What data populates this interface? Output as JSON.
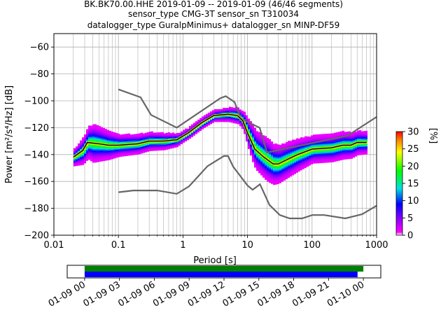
{
  "chart_data": [
    {
      "type": "heatmap",
      "title_lines": [
        "BK.BK70.00.HHE   2019-01-09 -- 2019-01-09  (46/46 segments)",
        "sensor_type CMG-3T sensor_sn T310034",
        "datalogger_type GuralpMinimus+ datalogger_sn MINP-DF59"
      ],
      "xlabel": "Period [s]",
      "ylabel": "Power [m²/s⁴/Hz] [dB]",
      "x_scale": "log",
      "xlim": [
        0.01,
        1000
      ],
      "ylim": [
        -200,
        -50
      ],
      "x_ticks": [
        0.01,
        0.1,
        1,
        10,
        100,
        1000
      ],
      "x_tick_labels": [
        "0.01",
        "0.1",
        "1",
        "10",
        "100",
        "1000"
      ],
      "y_ticks": [
        -200,
        -180,
        -160,
        -140,
        -120,
        -100,
        -80,
        -60
      ],
      "y_tick_labels": [
        "−200",
        "−180",
        "−160",
        "−140",
        "−120",
        "−100",
        "−80",
        "−60"
      ],
      "grid": true,
      "noise_models": [
        {
          "name": "new_high_noise_model",
          "color": "#666666",
          "points": [
            [
              0.1,
              -91.5
            ],
            [
              0.22,
              -97.4
            ],
            [
              0.32,
              -110.5
            ],
            [
              0.8,
              -120
            ],
            [
              3.8,
              -98
            ],
            [
              4.6,
              -96.5
            ],
            [
              6.3,
              -101
            ],
            [
              7.9,
              -113.5
            ],
            [
              15.4,
              -120
            ],
            [
              20,
              -138.5
            ],
            [
              354.8,
              -126
            ],
            [
              1000,
              -112
            ]
          ]
        },
        {
          "name": "new_low_noise_model",
          "color": "#666666",
          "points": [
            [
              0.1,
              -168
            ],
            [
              0.17,
              -166.7
            ],
            [
              0.4,
              -166.7
            ],
            [
              0.8,
              -169.2
            ],
            [
              1.24,
              -163.7
            ],
            [
              2.4,
              -148.6
            ],
            [
              4.3,
              -141.1
            ],
            [
              5,
              -141.1
            ],
            [
              6,
              -149
            ],
            [
              10,
              -163
            ],
            [
              12,
              -166.2
            ],
            [
              15.6,
              -162.1
            ],
            [
              21.9,
              -177.5
            ],
            [
              31.6,
              -185
            ],
            [
              45,
              -187.5
            ],
            [
              70,
              -187.5
            ],
            [
              101,
              -185
            ],
            [
              154,
              -185
            ],
            [
              328,
              -187.5
            ],
            [
              600,
              -184.4
            ],
            [
              1000,
              -178
            ]
          ]
        }
      ],
      "median_curve": [
        [
          0.02,
          -142
        ],
        [
          0.028,
          -137
        ],
        [
          0.033,
          -131
        ],
        [
          0.05,
          -132
        ],
        [
          0.07,
          -133
        ],
        [
          0.1,
          -133
        ],
        [
          0.2,
          -132
        ],
        [
          0.3,
          -130
        ],
        [
          0.5,
          -130
        ],
        [
          0.8,
          -129
        ],
        [
          1.2,
          -124
        ],
        [
          2,
          -116
        ],
        [
          3,
          -111
        ],
        [
          5,
          -110
        ],
        [
          7,
          -111
        ],
        [
          8.5,
          -115
        ],
        [
          10,
          -124
        ],
        [
          13,
          -136
        ],
        [
          18,
          -142
        ],
        [
          25,
          -147
        ],
        [
          30,
          -147
        ],
        [
          40,
          -144
        ],
        [
          60,
          -140
        ],
        [
          100,
          -136
        ],
        [
          200,
          -135
        ],
        [
          300,
          -133
        ],
        [
          400,
          -133
        ],
        [
          500,
          -131
        ],
        [
          700,
          -131
        ]
      ],
      "psd_band": {
        "width_db": [
          [
            0.02,
            6
          ],
          [
            0.04,
            14
          ],
          [
            0.1,
            8
          ],
          [
            0.5,
            6
          ],
          [
            1,
            4
          ],
          [
            3,
            4
          ],
          [
            8,
            6
          ],
          [
            12,
            14
          ],
          [
            20,
            16
          ],
          [
            30,
            14
          ],
          [
            60,
            12
          ],
          [
            100,
            10
          ],
          [
            300,
            10
          ],
          [
            700,
            8
          ]
        ]
      },
      "colorbar": {
        "label": "[%]",
        "range": [
          0,
          30
        ],
        "ticks": [
          0,
          5,
          10,
          15,
          20,
          25,
          30
        ],
        "tick_labels": [
          "0",
          "5",
          "10",
          "15",
          "20",
          "25",
          "30"
        ],
        "colormap": "pqlx"
      }
    },
    {
      "type": "bar",
      "description_key": "data_coverage",
      "x_range_labels": [
        "01-09 00",
        "01-10 00"
      ],
      "time_tick_labels": [
        "01-09 00",
        "01-09 03",
        "01-09 06",
        "01-09 09",
        "01-09 12",
        "01-09 15",
        "01-09 18",
        "01-09 21",
        "01-10 00"
      ],
      "xlim_hours": [
        -1.5,
        25.5
      ],
      "bars": [
        {
          "name": "data",
          "color": "#008000",
          "start_hour": 0,
          "end_hour": 24.0
        },
        {
          "name": "processed",
          "color": "#0000ff",
          "start_hour": 0,
          "end_hour": 23.5
        }
      ]
    }
  ]
}
